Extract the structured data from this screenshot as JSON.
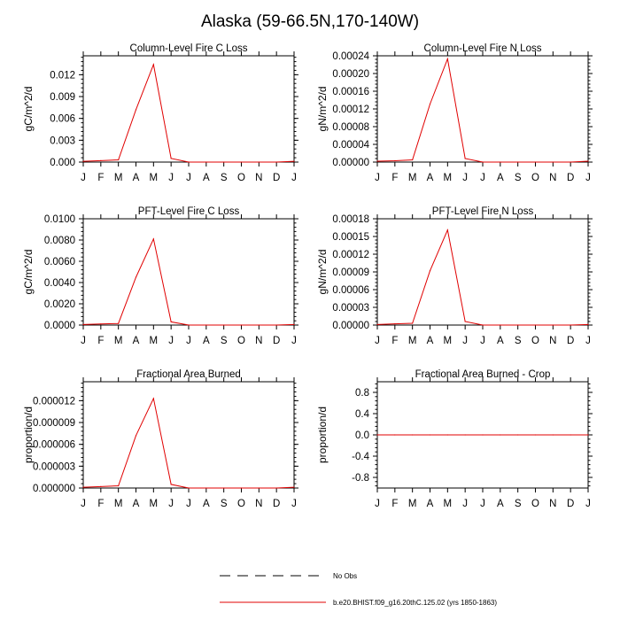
{
  "title": "Alaska (59-66.5N,170-140W)",
  "legend": {
    "entries": [
      {
        "label": "No Obs",
        "style": "dashed",
        "color": "#000000"
      },
      {
        "label": "b.e20.BHIST.f09_g16.20thC.125.02 (yrs 1850-1863)",
        "style": "solid",
        "color": "#e00000"
      }
    ]
  },
  "chart_data": [
    {
      "type": "line",
      "title": "Column-Level Fire C Loss",
      "ylabel": "gC/m^2/d",
      "x": [
        "J",
        "F",
        "M",
        "A",
        "M",
        "J",
        "J",
        "A",
        "S",
        "O",
        "N",
        "D",
        "J"
      ],
      "ylim": [
        0,
        0.0146
      ],
      "yticks": [
        0.0,
        0.003,
        0.006,
        0.009,
        0.012
      ],
      "yticklabels": [
        "0.000",
        "0.003",
        "0.006",
        "0.009",
        "0.012"
      ],
      "series": [
        {
          "color": "#e00000",
          "values": [
            0.0001,
            0.0002,
            0.0003,
            0.0072,
            0.0134,
            0.0005,
            0.0,
            0.0,
            0.0,
            0.0,
            0.0,
            0.0,
            0.0001
          ]
        }
      ]
    },
    {
      "type": "line",
      "title": "Column-Level Fire N Loss",
      "ylabel": "gN/m^2/d",
      "x": [
        "J",
        "F",
        "M",
        "A",
        "M",
        "J",
        "J",
        "A",
        "S",
        "O",
        "N",
        "D",
        "J"
      ],
      "ylim": [
        0,
        0.00024
      ],
      "yticks": [
        0.0,
        4e-05,
        8e-05,
        0.00012,
        0.00016,
        0.0002,
        0.00024
      ],
      "yticklabels": [
        "0.00000",
        "0.00004",
        "0.00008",
        "0.00012",
        "0.00016",
        "0.00020",
        "0.00024"
      ],
      "series": [
        {
          "color": "#e00000",
          "values": [
            2e-06,
            3e-06,
            5e-06,
            0.000131,
            0.000233,
            8e-06,
            0.0,
            0.0,
            0.0,
            0.0,
            0.0,
            0.0,
            2e-06
          ]
        }
      ]
    },
    {
      "type": "line",
      "title": "PFT-Level Fire C Loss",
      "ylabel": "gC/m^2/d",
      "x": [
        "J",
        "F",
        "M",
        "A",
        "M",
        "J",
        "J",
        "A",
        "S",
        "O",
        "N",
        "D",
        "J"
      ],
      "ylim": [
        0,
        0.01
      ],
      "yticks": [
        0.0,
        0.002,
        0.004,
        0.006,
        0.008,
        0.01
      ],
      "yticklabels": [
        "0.0000",
        "0.0020",
        "0.0040",
        "0.0060",
        "0.0080",
        "0.0100"
      ],
      "series": [
        {
          "color": "#e00000",
          "values": [
            5e-05,
            0.0001,
            0.00015,
            0.0045,
            0.0081,
            0.0003,
            0.0,
            0.0,
            0.0,
            0.0,
            0.0,
            0.0,
            5e-05
          ]
        }
      ]
    },
    {
      "type": "line",
      "title": "PFT-Level Fire N Loss",
      "ylabel": "gN/m^2/d",
      "x": [
        "J",
        "F",
        "M",
        "A",
        "M",
        "J",
        "J",
        "A",
        "S",
        "O",
        "N",
        "D",
        "J"
      ],
      "ylim": [
        0,
        0.00018
      ],
      "yticks": [
        0.0,
        3e-05,
        6e-05,
        9e-05,
        0.00012,
        0.00015,
        0.00018
      ],
      "yticklabels": [
        "0.00000",
        "0.00003",
        "0.00006",
        "0.00009",
        "0.00012",
        "0.00015",
        "0.00018"
      ],
      "series": [
        {
          "color": "#e00000",
          "values": [
            1e-06,
            2e-06,
            3e-06,
            9.2e-05,
            0.000161,
            6e-06,
            0.0,
            0.0,
            0.0,
            0.0,
            0.0,
            0.0,
            1e-06
          ]
        }
      ]
    },
    {
      "type": "line",
      "title": "Fractional Area Burned",
      "ylabel": "proportion/d",
      "x": [
        "J",
        "F",
        "M",
        "A",
        "M",
        "J",
        "J",
        "A",
        "S",
        "O",
        "N",
        "D",
        "J"
      ],
      "ylim": [
        0,
        1.46e-05
      ],
      "yticks": [
        0.0,
        3e-06,
        6e-06,
        9e-06,
        1.2e-05
      ],
      "yticklabels": [
        "0.000000",
        "0.000003",
        "0.000006",
        "0.000009",
        "0.000012"
      ],
      "series": [
        {
          "color": "#e00000",
          "values": [
            1e-07,
            2e-07,
            3e-07,
            7.2e-06,
            1.23e-05,
            5e-07,
            0.0,
            0.0,
            0.0,
            0.0,
            0.0,
            0.0,
            1e-07
          ]
        }
      ]
    },
    {
      "type": "line",
      "title": "Fractional Area Burned - Crop",
      "ylabel": "proportion/d",
      "x": [
        "J",
        "F",
        "M",
        "A",
        "M",
        "J",
        "J",
        "A",
        "S",
        "O",
        "N",
        "D",
        "J"
      ],
      "ylim": [
        -1.0,
        1.0
      ],
      "yticks": [
        -0.8,
        -0.4,
        0.0,
        0.4,
        0.8
      ],
      "yticklabels": [
        "-0.8",
        "-0.4",
        "0.0",
        "0.4",
        "0.8"
      ],
      "series": [
        {
          "color": "#e00000",
          "values": [
            0,
            0,
            0,
            0,
            0,
            0,
            0,
            0,
            0,
            0,
            0,
            0,
            0
          ]
        }
      ]
    }
  ]
}
